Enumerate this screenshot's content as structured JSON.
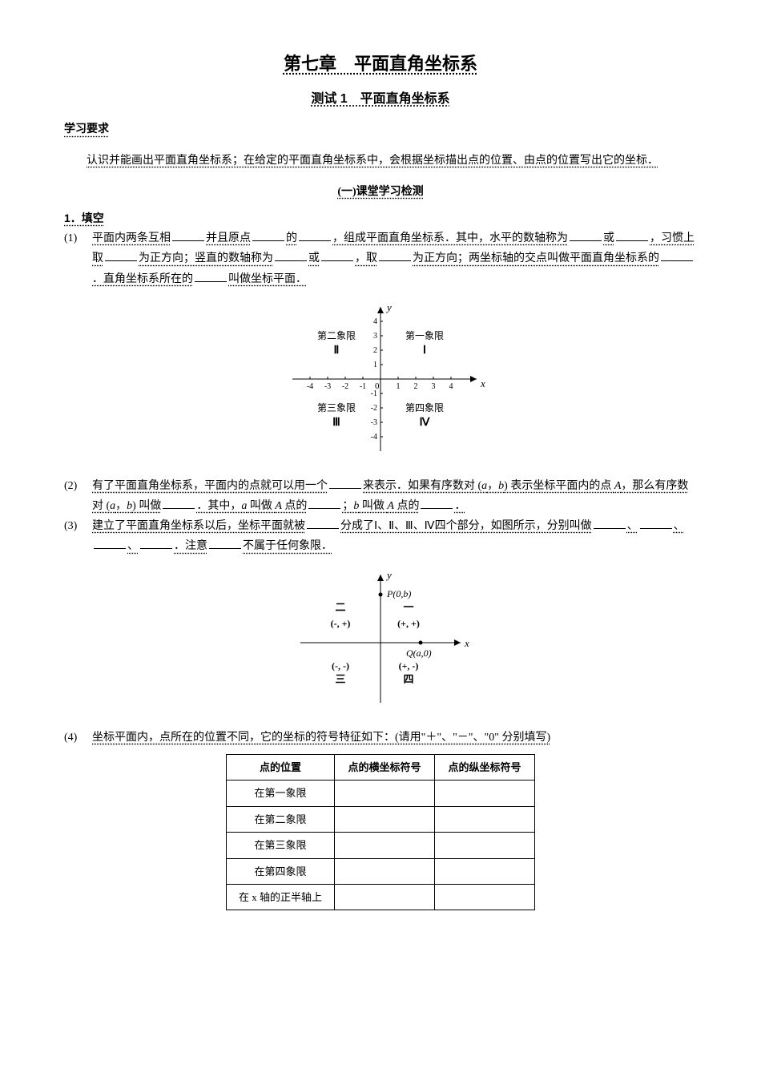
{
  "title": "第七章　平面直角坐标系",
  "subtitle": "测试 1　平面直角坐标系",
  "section_requirements_label": "学习要求",
  "requirements_text": "认识并能画出平面直角坐标系；在给定的平面直角坐标系中，会根据坐标描出点的位置、由点的位置写出它的坐标．",
  "test_section_label": "(一)课堂学习检测",
  "q1_label": "1．填空",
  "q1_items": {
    "a": {
      "marker": "(1)",
      "t1": "平面内两条互相",
      "t2": "并且原点",
      "t3": "的",
      "t4": "，组成平面直角坐标系．其中，水平的数轴称为",
      "t5": "或",
      "t6": "，习惯上取",
      "t7": "为正方向；竖直的数轴称为",
      "t8": "或",
      "t9": "，取",
      "t10": "为正方向；两坐标轴的交点叫做平面直角坐标系的",
      "t11": "．直角坐标系所在的",
      "t12": "叫做坐标平面．"
    },
    "b": {
      "marker": "(2)",
      "t1": "有了平面直角坐标系，平面内的点就可以用一个",
      "t2": "来表示．如果有序数对 (",
      "t3": "，",
      "t4": ") 表示坐标平面内的点 ",
      "t5": "，那么有序数对 (",
      "t6": "，",
      "t7": ") 叫做",
      "t8": "．其中，",
      "t9": " 叫做 ",
      "t10": " 点的",
      "t11": "；",
      "t12": " 叫做 ",
      "t13": " 点的",
      "t14": "．",
      "var_a": "a",
      "var_b": "b",
      "var_A": "A"
    },
    "c": {
      "marker": "(3)",
      "t1": "建立了平面直角坐标系以后，坐标平面就被",
      "t2": "分成了Ⅰ、Ⅱ、Ⅲ、Ⅳ四个部分，如图所示，分别叫做",
      "t3": "、",
      "t4": "、",
      "t5": "、",
      "t6": "．注意",
      "t7": "不属于任何象限．"
    },
    "d": {
      "marker": "(4)",
      "text": "坐标平面内，点所在的位置不同，它的坐标的符号特征如下：(请用\"＋\"、\"－\"、\"0\" 分别填写)"
    }
  },
  "chart1": {
    "x_label": "x",
    "y_label": "y",
    "x_ticks": [
      -4,
      -3,
      -2,
      -1,
      1,
      2,
      3,
      4
    ],
    "y_ticks": [
      -4,
      -3,
      -2,
      -1,
      1,
      2,
      3,
      4
    ],
    "origin_label": "0",
    "q1_label": "第一象限",
    "q1_roman": "Ⅰ",
    "q2_label": "第二象限",
    "q2_roman": "Ⅱ",
    "q3_label": "第三象限",
    "q3_roman": "Ⅲ",
    "q4_label": "第四象限",
    "q4_roman": "Ⅳ",
    "axis_color": "#000000",
    "grid_color": "#000000",
    "font_size": 12,
    "label_font_family": "KaiTi"
  },
  "chart2": {
    "x_label": "x",
    "y_label": "y",
    "p_label": "P(0,b)",
    "q_label": "Q(a,0)",
    "q1_cn": "一",
    "q1_sign": "(+, +)",
    "q2_cn": "二",
    "q2_sign": "(-, +)",
    "q3_cn": "三",
    "q3_sign": "(-, -)",
    "q4_cn": "四",
    "q4_sign": "(+, -)",
    "axis_color": "#000000",
    "font_size": 12
  },
  "table": {
    "header": [
      "点的位置",
      "点的横坐标符号",
      "点的纵坐标符号"
    ],
    "rows": [
      "在第一象限",
      "在第二象限",
      "在第三象限",
      "在第四象限",
      "在 x 轴的正半轴上"
    ]
  }
}
